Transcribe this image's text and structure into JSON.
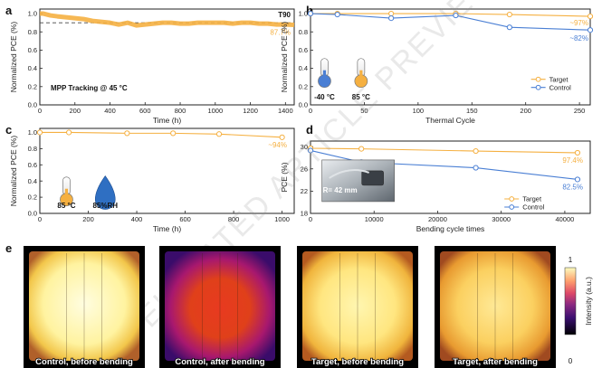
{
  "colors": {
    "target": "#f5b041",
    "control": "#4a7fd4",
    "dash": "#444444"
  },
  "watermark": "ACCELERATED ARTICLE PREVIEW",
  "chart_data": [
    {
      "id": "a",
      "panel_label": "a",
      "type": "line",
      "xlabel": "Time (h)",
      "ylabel": "Normalized PCE (%)",
      "xlim": [
        0,
        1450
      ],
      "ylim": [
        0,
        1.05
      ],
      "xticks": [
        0,
        200,
        400,
        600,
        800,
        1000,
        1200,
        1400
      ],
      "yticks": [
        0.0,
        0.2,
        0.4,
        0.6,
        0.8,
        1.0
      ],
      "ytick_labels": [
        "0.0",
        "0.2",
        "0.4",
        "0.6",
        "0.8",
        "1.0"
      ],
      "annotation": "MPP Tracking @ 45 °C",
      "t90_label": "T90",
      "t90_value": 0.9,
      "end_value_label": "87.7%",
      "series": [
        {
          "name": "Target",
          "x": [
            0,
            20,
            60,
            100,
            150,
            200,
            250,
            300,
            350,
            400,
            450,
            500,
            550,
            600,
            650,
            700,
            750,
            800,
            850,
            900,
            950,
            1000,
            1050,
            1100,
            1150,
            1200,
            1250,
            1300,
            1350,
            1400,
            1450
          ],
          "y": [
            1.0,
            1.0,
            0.98,
            0.97,
            0.96,
            0.95,
            0.94,
            0.92,
            0.91,
            0.9,
            0.88,
            0.9,
            0.87,
            0.88,
            0.89,
            0.9,
            0.9,
            0.89,
            0.89,
            0.9,
            0.9,
            0.9,
            0.9,
            0.89,
            0.9,
            0.9,
            0.89,
            0.89,
            0.88,
            0.88,
            0.877
          ]
        }
      ]
    },
    {
      "id": "b",
      "panel_label": "b",
      "type": "line",
      "xlabel": "Thermal Cycle",
      "ylabel": "Normalized PCE (%)",
      "xlim": [
        0,
        260
      ],
      "ylim": [
        0,
        1.05
      ],
      "xticks": [
        0,
        50,
        100,
        150,
        200,
        250
      ],
      "yticks": [
        0.0,
        0.2,
        0.4,
        0.6,
        0.8,
        1.0
      ],
      "ytick_labels": [
        "0.0",
        "0.2",
        "0.4",
        "0.6",
        "0.8",
        "1.0"
      ],
      "temp_labels": [
        "-40 °C",
        "85 °C"
      ],
      "end_labels": {
        "Target": "~97%",
        "Control": "~82%"
      },
      "series": [
        {
          "name": "Target",
          "x": [
            0,
            25,
            75,
            135,
            185,
            260
          ],
          "y": [
            1.0,
            1.0,
            1.0,
            1.0,
            0.99,
            0.97
          ]
        },
        {
          "name": "Control",
          "x": [
            0,
            25,
            75,
            135,
            185,
            260
          ],
          "y": [
            1.0,
            0.99,
            0.95,
            0.98,
            0.85,
            0.82
          ]
        }
      ],
      "legend": [
        "Target",
        "Control"
      ]
    },
    {
      "id": "c",
      "panel_label": "c",
      "type": "line",
      "xlabel": "Time (h)",
      "ylabel": "Normalized PCE (%)",
      "xlim": [
        0,
        1050
      ],
      "ylim": [
        0,
        1.05
      ],
      "xticks": [
        0,
        200,
        400,
        600,
        800,
        1000
      ],
      "yticks": [
        0.0,
        0.2,
        0.4,
        0.6,
        0.8,
        1.0
      ],
      "ytick_labels": [
        "0.0",
        "0.2",
        "0.4",
        "0.6",
        "0.8",
        "1.0"
      ],
      "conditions": [
        "85 °C",
        "85%RH"
      ],
      "end_value_label": "~94%",
      "series": [
        {
          "name": "Target",
          "x": [
            0,
            120,
            360,
            550,
            740,
            1000
          ],
          "y": [
            1.0,
            1.0,
            0.99,
            0.99,
            0.98,
            0.94
          ]
        }
      ]
    },
    {
      "id": "d",
      "panel_label": "d",
      "type": "line",
      "xlabel": "Bending cycle times",
      "ylabel": "PCE (%)",
      "xlim": [
        0,
        44000
      ],
      "ylim": [
        18,
        31
      ],
      "xticks": [
        0,
        10000,
        20000,
        30000,
        40000
      ],
      "yticks": [
        18,
        22,
        26,
        30
      ],
      "ytick_labels": [
        "18",
        "22",
        "26",
        "30"
      ],
      "inset_label": "R= 42 mm",
      "end_labels": {
        "Target": "97.4%",
        "Control": "82.5%"
      },
      "series": [
        {
          "name": "Target",
          "x": [
            0,
            8000,
            26000,
            42000
          ],
          "y": [
            29.7,
            29.6,
            29.2,
            28.9
          ]
        },
        {
          "name": "Control",
          "x": [
            0,
            8000,
            26000,
            42000
          ],
          "y": [
            29.3,
            27.2,
            26.2,
            24.1
          ]
        }
      ],
      "legend": [
        "Target",
        "Control"
      ]
    }
  ],
  "panel_e": {
    "panel_label": "e",
    "captions": [
      "Control, before bending",
      "Control, after bending",
      "Target, before bending",
      "Target, after bending"
    ],
    "colorbar": {
      "label": "Intensity (a.u.)",
      "max": "1",
      "min": "0"
    }
  }
}
